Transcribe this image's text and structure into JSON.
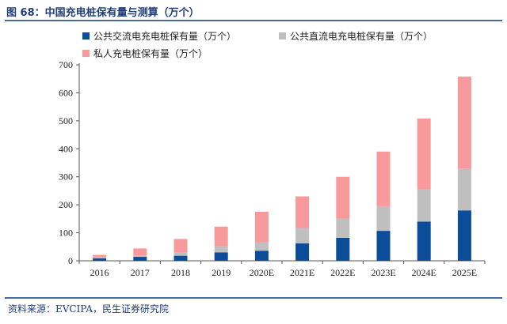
{
  "figure": {
    "title": "图 68：中国充电桩保有量与测算（万个）",
    "source": "资料来源：EVCIPA，民生证券研究院"
  },
  "chart_data": {
    "type": "bar",
    "stacked": true,
    "categories": [
      "2016",
      "2017",
      "2018",
      "2019",
      "2020E",
      "2021E",
      "2022E",
      "2023E",
      "2024E",
      "2025E"
    ],
    "series": [
      {
        "name": "公共交流电充电桩保有量（万个）",
        "color": "#0b4d99",
        "values": [
          9,
          14,
          18,
          30,
          36,
          62,
          82,
          107,
          140,
          180
        ]
      },
      {
        "name": "公共直流电充电桩保有量（万个）",
        "color": "#bfbfbf",
        "values": [
          3,
          5,
          13,
          22,
          30,
          55,
          68,
          88,
          115,
          150
        ]
      },
      {
        "name": "私人充电桩保有量（万个）",
        "color": "#f8999b",
        "values": [
          9,
          25,
          47,
          70,
          109,
          113,
          150,
          195,
          253,
          328
        ]
      }
    ],
    "yticks": [
      0,
      100,
      200,
      300,
      400,
      500,
      600,
      700
    ],
    "ylim": [
      0,
      700
    ],
    "grid": false,
    "legend": "top"
  }
}
